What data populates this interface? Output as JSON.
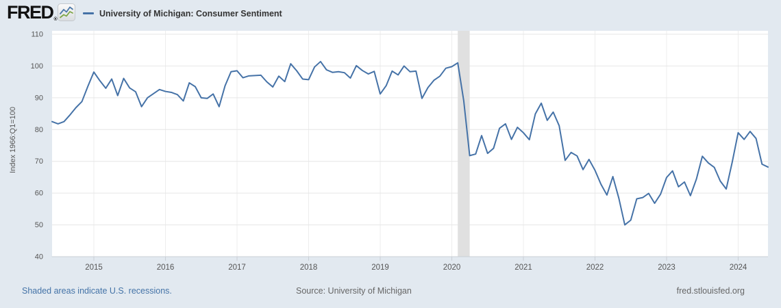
{
  "header": {
    "brand": "FRED",
    "brand_registered": "®"
  },
  "chart_data": {
    "type": "line",
    "title": "University of Michigan: Consumer Sentiment",
    "xlabel": "",
    "ylabel": "Index 1966:Q1=100",
    "ylim": [
      40,
      110
    ],
    "y_ticks": [
      40,
      50,
      60,
      70,
      80,
      90,
      100,
      110
    ],
    "x_ticks": [
      "2015",
      "2016",
      "2017",
      "2018",
      "2019",
      "2020",
      "2021",
      "2022",
      "2023",
      "2024"
    ],
    "grid": true,
    "legend_position": "top-left",
    "recessions": [
      {
        "from": "2020-02",
        "to": "2020-04"
      }
    ],
    "series": [
      {
        "name": "University of Michigan: Consumer Sentiment",
        "color": "#4572a7",
        "frequency": "monthly",
        "start": "2014-06",
        "end": "2024-06",
        "values": [
          82.5,
          81.8,
          82.5,
          84.6,
          86.9,
          88.8,
          93.6,
          98.1,
          95.4,
          93.0,
          95.9,
          90.7,
          96.1,
          93.1,
          91.9,
          87.2,
          90.0,
          91.3,
          92.6,
          92.0,
          91.7,
          91.0,
          89.0,
          94.7,
          93.5,
          90.0,
          89.8,
          91.2,
          87.2,
          93.8,
          98.2,
          98.5,
          96.3,
          96.9,
          97.0,
          97.1,
          95.0,
          93.4,
          96.8,
          95.1,
          100.7,
          98.5,
          95.9,
          95.7,
          99.7,
          101.4,
          98.8,
          98.0,
          98.2,
          97.9,
          96.2,
          100.1,
          98.6,
          97.5,
          98.3,
          91.2,
          93.8,
          98.4,
          97.2,
          100.0,
          98.2,
          98.4,
          89.8,
          93.2,
          95.5,
          96.8,
          99.3,
          99.8,
          101.0,
          89.1,
          71.8,
          72.3,
          78.1,
          72.5,
          74.1,
          80.4,
          81.8,
          76.9,
          80.7,
          79.0,
          76.8,
          84.9,
          88.3,
          82.9,
          85.5,
          81.2,
          70.3,
          72.8,
          71.7,
          67.4,
          70.6,
          67.2,
          62.8,
          59.4,
          65.2,
          58.4,
          50.0,
          51.5,
          58.2,
          58.6,
          59.9,
          56.8,
          59.7,
          64.9,
          67.0,
          62.0,
          63.5,
          59.2,
          64.4,
          71.6,
          69.5,
          68.1,
          63.8,
          61.3,
          69.7,
          79.0,
          76.9,
          79.4,
          77.2,
          69.1,
          68.2
        ]
      }
    ]
  },
  "footer": {
    "recession_note": "Shaded areas indicate U.S. recessions.",
    "source": "Source: University of Michigan",
    "site": "fred.stlouisfed.org"
  },
  "colors": {
    "page_bg": "#e2e9f0",
    "plot_bg": "#ffffff",
    "line": "#4572a7",
    "recession_band": "#e0e0e0",
    "gridline": "#e6e6e6",
    "gridline_vertical": "#ededed",
    "axis": "#c9cfd6",
    "tick_label": "#555555",
    "link": "#4473a7",
    "footer_text": "#666666",
    "title_text": "#333333"
  }
}
